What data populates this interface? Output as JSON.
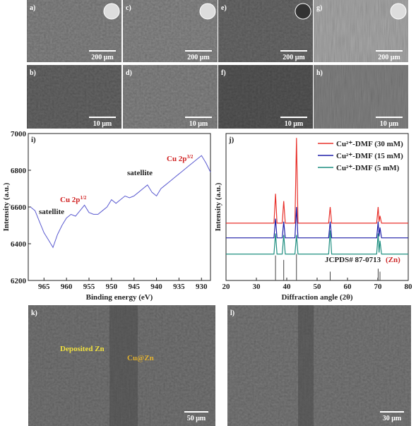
{
  "figure": {
    "sem_top": [
      {
        "label": "a)",
        "scale": "200 μm"
      },
      {
        "label": "c)",
        "scale": "200 μm"
      },
      {
        "label": "e)",
        "scale": "200 μm"
      },
      {
        "label": "g)",
        "scale": "200 μm"
      },
      {
        "label": "b)",
        "scale": "10 μm"
      },
      {
        "label": "d)",
        "scale": "10 μm"
      },
      {
        "label": "f)",
        "scale": "10 μm"
      },
      {
        "label": "h)",
        "scale": "10 μm"
      }
    ],
    "sem_bottom": [
      {
        "label": "k)",
        "scale": "50 μm",
        "notes": [
          "Deposited Zn",
          "Cu@Zn"
        ]
      },
      {
        "label": "l)",
        "scale": "30 μm"
      }
    ]
  },
  "chart_data": [
    {
      "type": "line",
      "panel": "i)",
      "xlabel": "Binding energy (eV)",
      "ylabel": "Intensity (a.u.)",
      "color": "#5a5ad0",
      "x": [
        968,
        967,
        966,
        965,
        964,
        963,
        962,
        961,
        960,
        959,
        958,
        957,
        956,
        955,
        954,
        953,
        952,
        951,
        950,
        949,
        948,
        947,
        946,
        945,
        944,
        943,
        942,
        941,
        940,
        939,
        938,
        937,
        936,
        935,
        934,
        933,
        932,
        931,
        930,
        929,
        928
      ],
      "values": [
        6600,
        6580,
        6520,
        6460,
        6420,
        6380,
        6450,
        6500,
        6540,
        6560,
        6550,
        6580,
        6610,
        6570,
        6560,
        6560,
        6580,
        6600,
        6640,
        6620,
        6640,
        6660,
        6650,
        6660,
        6680,
        6700,
        6720,
        6680,
        6660,
        6700,
        6720,
        6740,
        6760,
        6780,
        6800,
        6820,
        6840,
        6860,
        6880,
        6840,
        6790
      ],
      "xlim": [
        968.5,
        928
      ],
      "xticks": [
        965,
        960,
        955,
        950,
        945,
        940,
        935,
        930
      ],
      "ylim": [
        6200,
        7000
      ],
      "yticks": [
        6200,
        6400,
        6600,
        6800,
        7000
      ],
      "annotations": [
        {
          "text": "satellite"
        },
        {
          "text": "Cu 2p",
          "sup": "1/2"
        },
        {
          "text": "satellite"
        },
        {
          "text": "Cu 2p",
          "sup": "3/2"
        }
      ]
    },
    {
      "type": "line",
      "panel": "j)",
      "xlabel": "Diffraction angle (2θ)",
      "ylabel": "Intensity (a.u.)",
      "x": [
        20,
        35.8,
        36.3,
        36.8,
        38.5,
        39,
        39.5,
        42.7,
        43.2,
        43.7,
        53.8,
        54.3,
        54.8,
        69.6,
        70.1,
        70.4,
        70.7,
        71.2,
        80
      ],
      "series": [
        {
          "name": "Cu²⁺-DMF (30 mM)",
          "color": "#e8322c",
          "values": [
            39,
            39,
            59,
            39,
            39,
            54,
            39,
            39,
            97,
            39,
            39,
            50,
            39,
            39,
            50,
            40,
            44,
            39,
            39
          ]
        },
        {
          "name": "Cu²⁺-DMF (15 mM)",
          "color": "#1f1fa8",
          "values": [
            29,
            29,
            42,
            29,
            29,
            40,
            29,
            29,
            50,
            29,
            29,
            40,
            29,
            29,
            40,
            30,
            36,
            29,
            29
          ]
        },
        {
          "name": "Cu²⁺-DMF (5 mM)",
          "color": "#1f8f80",
          "values": [
            18,
            18,
            32,
            18,
            18,
            31,
            18,
            18,
            31,
            18,
            18,
            34,
            18,
            18,
            32,
            19,
            27,
            18,
            18
          ]
        }
      ],
      "reference": {
        "name": "JCPDS# 87-0713",
        "label": "(Zn)",
        "label_color": "#cc2a2a",
        "x": [
          36.3,
          39,
          43.2,
          54.3,
          70.1,
          70.7
        ],
        "values": [
          17,
          14,
          18,
          6,
          8,
          6
        ]
      },
      "xlim": [
        20,
        80
      ],
      "xticks": [
        20,
        30,
        40,
        50,
        60,
        70,
        80
      ],
      "ylim": [
        0,
        100
      ]
    }
  ]
}
